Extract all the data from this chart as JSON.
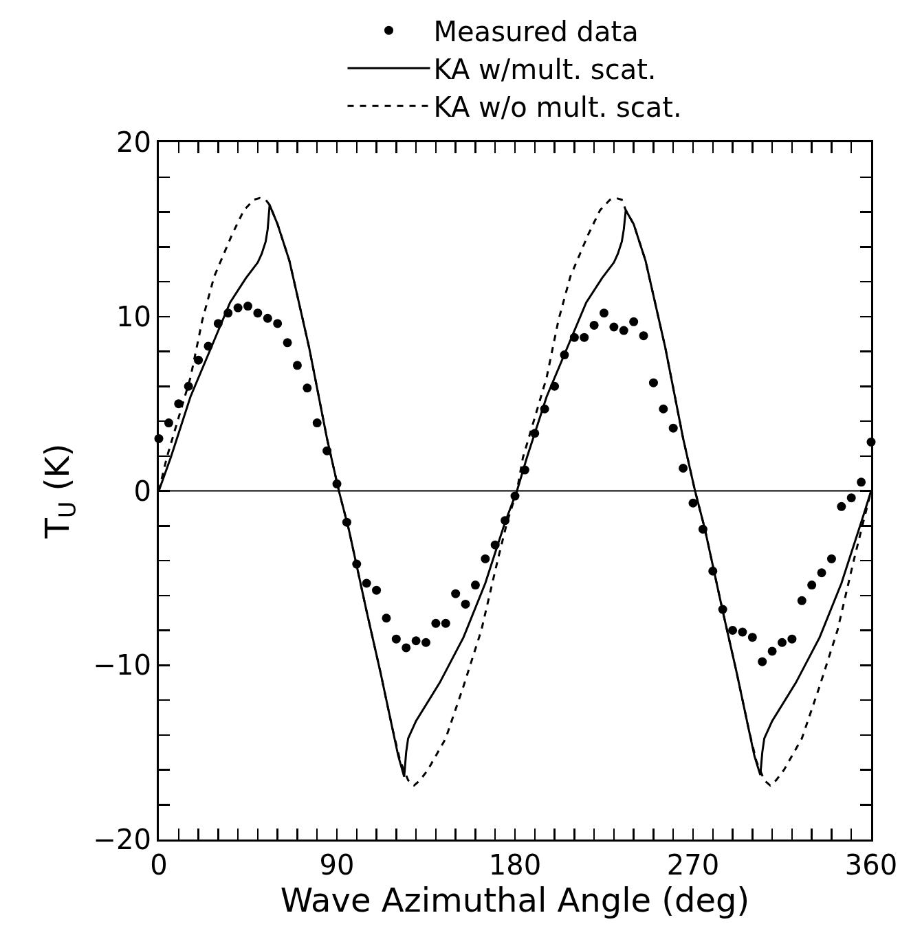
{
  "chart_data": {
    "type": "line",
    "xlabel": "Wave Azimuthal Angle (deg)",
    "ylabel": "T$_{U}$ (K)",
    "xlim": [
      0,
      360
    ],
    "ylim": [
      -20,
      20
    ],
    "xticks": [
      0,
      {
        "value": 10,
        "label": null
      },
      {
        "value": 20,
        "label": null
      },
      {
        "value": 30,
        "label": null
      },
      {
        "value": 40,
        "label": null
      },
      {
        "value": 50,
        "label": null
      },
      {
        "value": 60,
        "label": null
      },
      {
        "value": 70,
        "label": null
      },
      {
        "value": 80,
        "label": null
      },
      90,
      {
        "value": 100,
        "label": null
      },
      {
        "value": 110,
        "label": null
      },
      {
        "value": 120,
        "label": null
      },
      {
        "value": 130,
        "label": null
      },
      {
        "value": 140,
        "label": null
      },
      {
        "value": 150,
        "label": null
      },
      {
        "value": 160,
        "label": null
      },
      {
        "value": 170,
        "label": null
      },
      180,
      {
        "value": 190,
        "label": null
      },
      {
        "value": 200,
        "label": null
      },
      {
        "value": 210,
        "label": null
      },
      {
        "value": 220,
        "label": null
      },
      {
        "value": 230,
        "label": null
      },
      {
        "value": 240,
        "label": null
      },
      {
        "value": 250,
        "label": null
      },
      {
        "value": 260,
        "label": null
      },
      270,
      {
        "value": 280,
        "label": null
      },
      {
        "value": 290,
        "label": null
      },
      {
        "value": 300,
        "label": null
      },
      {
        "value": 310,
        "label": null
      },
      {
        "value": 320,
        "label": null
      },
      {
        "value": 330,
        "label": null
      },
      {
        "value": 340,
        "label": null
      },
      {
        "value": 350,
        "label": null
      },
      360
    ],
    "yticks": [
      -20,
      {
        "value": -18,
        "label": null
      },
      {
        "value": -16,
        "label": null
      },
      {
        "value": -14,
        "label": null
      },
      {
        "value": -12,
        "label": null
      },
      -10,
      {
        "value": -8,
        "label": null
      },
      {
        "value": -6,
        "label": null
      },
      {
        "value": -4,
        "label": null
      },
      {
        "value": -2,
        "label": null
      },
      0,
      {
        "value": 2,
        "label": null
      },
      {
        "value": 4,
        "label": null
      },
      {
        "value": 6,
        "label": null
      },
      {
        "value": 8,
        "label": null
      },
      10,
      {
        "value": 12,
        "label": null
      },
      {
        "value": 14,
        "label": null
      },
      {
        "value": 16,
        "label": null
      },
      {
        "value": 18,
        "label": null
      },
      20
    ],
    "legend": "top",
    "grid": false,
    "ref_lines": [
      {
        "axis": "y",
        "value": 0,
        "color": "#000000"
      }
    ],
    "series": [
      {
        "name": "Measured data",
        "type": "scatter",
        "marker": "circle",
        "color": "#000000",
        "x": [
          0,
          5,
          10,
          15,
          20,
          25,
          30,
          35,
          40,
          45,
          50,
          55,
          60,
          65,
          70,
          75,
          80,
          85,
          90,
          95,
          100,
          105,
          110,
          115,
          120,
          125,
          130,
          135,
          140,
          145,
          150,
          155,
          160,
          165,
          170,
          175,
          180,
          185,
          190,
          195,
          200,
          205,
          210,
          215,
          220,
          225,
          230,
          235,
          240,
          245,
          250,
          255,
          260,
          265,
          270,
          275,
          280,
          285,
          290,
          295,
          300,
          305,
          310,
          315,
          320,
          325,
          330,
          335,
          340,
          345,
          350,
          355,
          360
        ],
        "values": [
          3.0,
          3.9,
          5.0,
          6.0,
          7.5,
          8.3,
          9.6,
          10.2,
          10.5,
          10.6,
          10.2,
          9.9,
          9.6,
          8.5,
          7.2,
          5.9,
          3.9,
          2.3,
          0.4,
          -1.8,
          -4.2,
          -5.3,
          -5.7,
          -7.3,
          -8.5,
          -9.0,
          -8.6,
          -8.7,
          -7.6,
          -7.6,
          -5.9,
          -6.5,
          -5.4,
          -3.9,
          -3.1,
          -1.7,
          -0.3,
          1.2,
          3.3,
          4.7,
          6.0,
          7.8,
          8.8,
          8.8,
          9.5,
          10.2,
          9.4,
          9.2,
          9.7,
          8.9,
          6.2,
          4.7,
          3.6,
          1.3,
          -0.7,
          -2.2,
          -4.6,
          -6.8,
          -8.0,
          -8.1,
          -8.4,
          -9.8,
          -9.2,
          -8.7,
          -8.5,
          -6.3,
          -5.4,
          -4.7,
          -3.9,
          -0.9,
          -0.4,
          0.5,
          2.8
        ]
      },
      {
        "name": "KA w/mult. scat.",
        "line_style": "solid",
        "color": "#000000",
        "x": [
          0,
          6,
          16,
          26,
          36,
          44,
          50,
          52,
          54,
          55,
          56,
          60,
          66,
          76,
          85,
          91,
          96,
          105,
          112,
          118,
          121,
          124,
          125,
          126,
          130,
          142,
          154,
          165,
          175,
          181,
          186,
          196,
          206,
          216,
          224,
          230,
          232,
          234,
          235,
          236,
          240,
          246,
          256,
          265,
          271,
          276,
          285,
          292,
          298,
          301,
          304,
          305,
          306,
          310,
          322,
          334,
          345,
          355,
          360
        ],
        "values": [
          0,
          1.9,
          5.4,
          8.1,
          10.8,
          12.2,
          13.1,
          13.6,
          14.3,
          15.0,
          16.4,
          15.3,
          13.2,
          8.2,
          3.0,
          0,
          -2.2,
          -6.9,
          -10.4,
          -13.6,
          -15.2,
          -16.4,
          -15.0,
          -14.2,
          -13.2,
          -11.0,
          -8.4,
          -5.3,
          -1.8,
          0,
          1.9,
          5.4,
          8.1,
          10.8,
          12.2,
          13.1,
          13.6,
          14.3,
          15.0,
          16.1,
          15.3,
          13.2,
          8.2,
          3.0,
          0,
          -2.2,
          -6.9,
          -10.4,
          -13.6,
          -15.2,
          -16.3,
          -15.0,
          -14.2,
          -13.2,
          -11.0,
          -8.4,
          -5.3,
          -1.8,
          0
        ]
      },
      {
        "name": "KA w/o mult. scat.",
        "line_style": "dashed",
        "color": "#000000",
        "x": [
          0,
          4,
          10,
          16,
          22,
          28,
          37,
          43,
          48,
          51,
          54,
          56,
          60,
          66,
          76,
          85,
          91,
          96,
          105,
          112,
          118,
          122,
          126,
          129,
          132,
          136,
          145,
          154,
          163,
          171,
          176,
          181,
          184,
          190,
          196,
          202,
          208,
          217,
          223,
          228,
          231,
          234,
          236,
          240,
          246,
          256,
          265,
          271,
          276,
          285,
          292,
          298,
          302,
          306,
          309,
          312,
          316,
          325,
          334,
          343,
          351,
          356,
          360
        ],
        "values": [
          0,
          1.9,
          4.2,
          6.5,
          9.8,
          12.3,
          14.7,
          16.1,
          16.7,
          16.8,
          16.7,
          16.4,
          15.3,
          13.2,
          8.2,
          3.0,
          0,
          -2.2,
          -6.9,
          -10.4,
          -13.6,
          -15.5,
          -16.6,
          -16.9,
          -16.6,
          -16.0,
          -14.2,
          -11.2,
          -8.0,
          -4.1,
          -1.8,
          0,
          1.9,
          4.2,
          6.5,
          9.8,
          12.3,
          14.7,
          16.1,
          16.7,
          16.8,
          16.7,
          16.1,
          15.3,
          13.2,
          8.2,
          3.0,
          0,
          -2.2,
          -6.9,
          -10.4,
          -13.6,
          -15.5,
          -16.6,
          -16.9,
          -16.6,
          -16.0,
          -14.2,
          -11.2,
          -8.0,
          -4.1,
          -1.8,
          0
        ]
      }
    ]
  }
}
